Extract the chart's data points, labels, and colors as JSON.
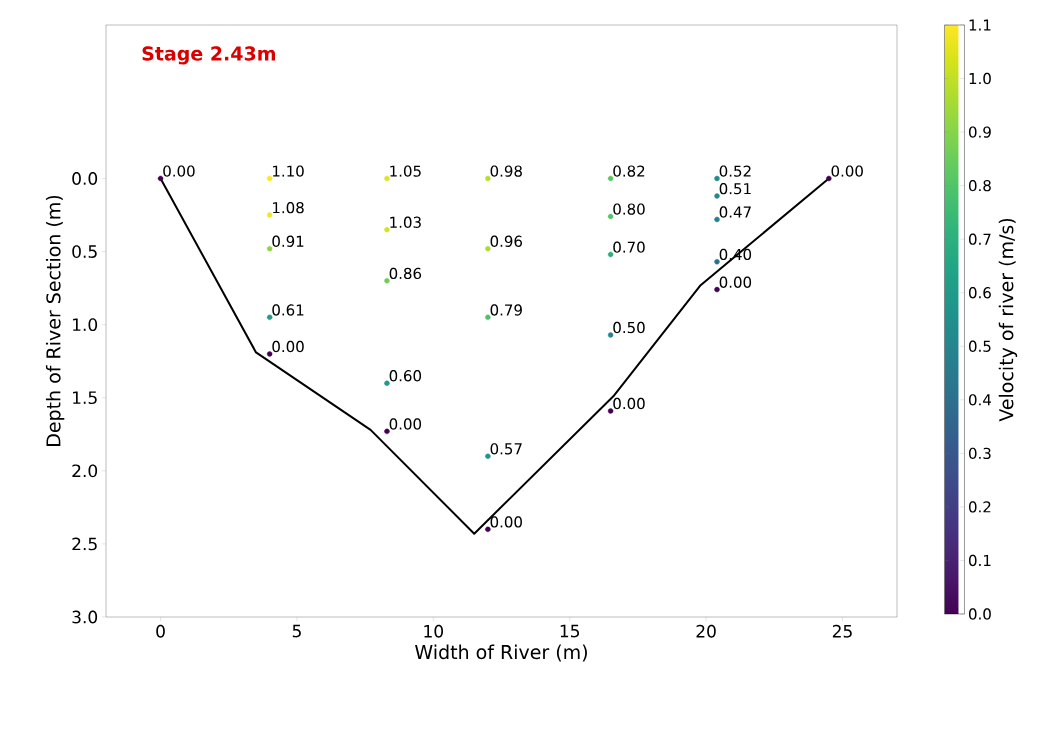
{
  "chart_data": {
    "type": "scatter",
    "xlabel": "Width of River (m)",
    "ylabel": "Depth of River Section (m)",
    "clabel": "Velocity of river (m/s)",
    "annotations": [
      "Stage 2.43m",
      {
        "text": "0.00",
        "x": 0,
        "y": 0
      },
      {
        "text": "1.10",
        "x": 4.0,
        "y": 0
      },
      {
        "text": "1.08",
        "x": 4.0,
        "y": 0.25
      },
      {
        "text": "0.91",
        "x": 4.0,
        "y": 0.48
      },
      {
        "text": "0.61",
        "x": 4.0,
        "y": 0.95
      },
      {
        "text": "0.00",
        "x": 4.0,
        "y": 1.2
      },
      {
        "text": "1.05",
        "x": 8.3,
        "y": 0
      },
      {
        "text": "1.03",
        "x": 8.3,
        "y": 0.35
      },
      {
        "text": "0.86",
        "x": 8.3,
        "y": 0.7
      },
      {
        "text": "0.60",
        "x": 8.3,
        "y": 1.4
      },
      {
        "text": "0.00",
        "x": 8.3,
        "y": 1.73
      },
      {
        "text": "0.98",
        "x": 12.0,
        "y": 0
      },
      {
        "text": "0.96",
        "x": 12.0,
        "y": 0.48
      },
      {
        "text": "0.79",
        "x": 12.0,
        "y": 0.95
      },
      {
        "text": "0.57",
        "x": 12.0,
        "y": 1.9
      },
      {
        "text": "0.00",
        "x": 12.0,
        "y": 2.4
      },
      {
        "text": "0.82",
        "x": 16.5,
        "y": 0
      },
      {
        "text": "0.80",
        "x": 16.5,
        "y": 0.26
      },
      {
        "text": "0.70",
        "x": 16.5,
        "y": 0.52
      },
      {
        "text": "0.50",
        "x": 16.5,
        "y": 1.07
      },
      {
        "text": "0.00",
        "x": 16.5,
        "y": 1.59
      },
      {
        "text": "0.52",
        "x": 20.4,
        "y": 0
      },
      {
        "text": "0.51",
        "x": 20.4,
        "y": 0.12
      },
      {
        "text": "0.47",
        "x": 20.4,
        "y": 0.28
      },
      {
        "text": "0.40",
        "x": 20.4,
        "y": 0.57
      },
      {
        "text": "0.00",
        "x": 20.4,
        "y": 0.76
      },
      {
        "text": "0.00",
        "x": 24.5,
        "y": 0
      }
    ],
    "xlim": [
      -2,
      27
    ],
    "xticks": [
      0,
      5,
      10,
      15,
      20,
      25
    ],
    "ylim": [
      3.0,
      -1.05
    ],
    "yticks": [
      {
        "value": 0,
        "label": "0.0"
      },
      0.5,
      {
        "value": 1,
        "label": "1.0"
      },
      1.5,
      {
        "value": 2,
        "label": "2.0"
      },
      2.5,
      {
        "value": 3,
        "label": "3.0"
      }
    ],
    "clim": [
      0,
      1.1
    ],
    "cticks": [
      {
        "value": 0,
        "label": "0.0"
      },
      0.1,
      0.2,
      0.3,
      0.4,
      0.5,
      0.6,
      0.7,
      0.8,
      0.9,
      {
        "value": 1,
        "label": "1.0"
      },
      1.1
    ],
    "grid": false,
    "series": [
      {
        "marker": "circle",
        "x": [
          0,
          4.0,
          4.0,
          4.0,
          4.0,
          4.0,
          8.3,
          8.3,
          8.3,
          8.3,
          8.3,
          12.0,
          12.0,
          12.0,
          12.0,
          12.0,
          16.5,
          16.5,
          16.5,
          16.5,
          16.5,
          20.4,
          20.4,
          20.4,
          20.4,
          20.4,
          24.5
        ],
        "values": [
          0,
          0,
          0.25,
          0.48,
          0.95,
          1.2,
          0,
          0.35,
          0.7,
          1.4,
          1.73,
          0,
          0.48,
          0.95,
          1.9,
          2.4,
          0,
          0.26,
          0.52,
          1.07,
          1.59,
          0,
          0.12,
          0.28,
          0.57,
          0.76,
          0
        ],
        "cvalues": [
          0,
          1.1,
          1.08,
          0.91,
          0.61,
          0,
          1.05,
          1.03,
          0.86,
          0.6,
          0,
          0.98,
          0.96,
          0.79,
          0.57,
          0,
          0.82,
          0.8,
          0.7,
          0.5,
          0,
          0.52,
          0.51,
          0.47,
          0.4,
          0,
          0
        ],
        "colors": [
          "#440154",
          "#fde725",
          "#f2e625",
          "#8cd545",
          "#229e88",
          "#440154",
          "#e0e326",
          "#d4e226",
          "#70ce57",
          "#219b88",
          "#440154",
          "#b7de2a",
          "#abdb32",
          "#4ec26a",
          "#21958b",
          "#440154",
          "#5cc762",
          "#53c468",
          "#2eb07d",
          "#25868d",
          "#440154",
          "#238a8d",
          "#24888d",
          "#287f8e",
          "#2e6f8e",
          "#440154",
          "#440154"
        ]
      },
      {
        "type": "line",
        "color": "#000000",
        "line_style": "solid",
        "marker": "none",
        "x": [
          0,
          3.5,
          7.7,
          11.5,
          16.6,
          19.8,
          24.5
        ],
        "values": [
          0,
          1.19,
          1.72,
          2.43,
          1.49,
          0.73,
          0
        ]
      }
    ]
  }
}
